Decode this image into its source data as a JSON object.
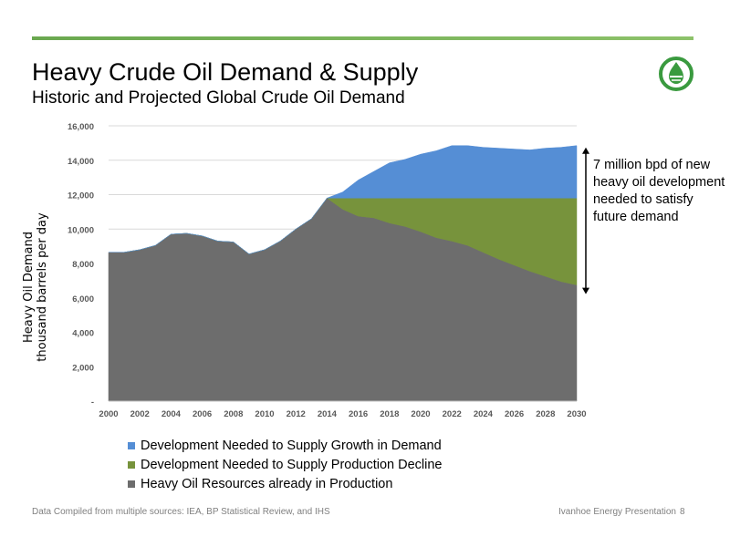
{
  "slide": {
    "title": "Heavy Crude Oil Demand & Supply",
    "subtitle": "Historic and Projected Global Crude Oil Demand",
    "footer_source": "Data Compiled from multiple sources:  IEA,  BP Statistical Review, and IHS",
    "footer_presentation": "Ivanhoe Energy Presentation",
    "page_number": "8",
    "annotation": "7 million bpd of new heavy oil development needed to satisfy future demand",
    "logo_icon": "ivanhoe-drop-logo-icon"
  },
  "colors": {
    "rule": "#6aa84f",
    "logo": "#3a9a3f",
    "growth": "#558ed5",
    "decline": "#77933c",
    "production": "#6d6d6d",
    "axis_text": "#595959",
    "gridline": "#d9d9d9"
  },
  "chart_data": {
    "type": "area",
    "stacked": true,
    "ylabel": [
      "Heavy Oil Demand",
      "thousand barrels per day"
    ],
    "ylim": [
      0,
      16000
    ],
    "y_ticks": [
      0,
      2000,
      4000,
      6000,
      8000,
      10000,
      12000,
      14000,
      16000
    ],
    "y_tick_labels": [
      "-",
      "2,000",
      "4,000",
      "6,000",
      "8,000",
      "10,000",
      "12,000",
      "14,000",
      "16,000"
    ],
    "x_ticks": [
      2000,
      2002,
      2004,
      2006,
      2008,
      2010,
      2012,
      2014,
      2016,
      2018,
      2020,
      2022,
      2024,
      2026,
      2028,
      2030
    ],
    "x_tick_labels": [
      "2000",
      "2002",
      "2004",
      "2006",
      "2008",
      "2010",
      "2012",
      "2014",
      "2016",
      "2018",
      "2020",
      "2022",
      "2024",
      "2026",
      "2028",
      "2030"
    ],
    "grid": "horizontal",
    "legend_position": "bottom",
    "x": [
      2000,
      2001,
      2002,
      2003,
      2004,
      2005,
      2006,
      2007,
      2008,
      2009,
      2010,
      2011,
      2012,
      2013,
      2014,
      2015,
      2016,
      2017,
      2018,
      2019,
      2020,
      2021,
      2022,
      2023,
      2024,
      2025,
      2026,
      2027,
      2028,
      2029,
      2030
    ],
    "series": [
      {
        "name": "Heavy Oil Resources already in Production",
        "color": "#6d6d6d",
        "values": [
          8650,
          8650,
          8800,
          9050,
          9700,
          9750,
          9600,
          9300,
          9250,
          8550,
          8800,
          9300,
          10000,
          10600,
          11800,
          11150,
          10750,
          10650,
          10350,
          10150,
          9850,
          9500,
          9300,
          9050,
          8650,
          8250,
          7900,
          7550,
          7250,
          6950,
          6750
        ]
      },
      {
        "name": "Development Needed to Supply Production Decline",
        "color": "#77933c",
        "values": [
          0,
          0,
          0,
          0,
          0,
          0,
          0,
          0,
          0,
          0,
          0,
          0,
          0,
          0,
          0,
          650,
          1050,
          1150,
          1450,
          1650,
          1950,
          2300,
          2500,
          2750,
          3150,
          3550,
          3900,
          4250,
          4550,
          4850,
          5050
        ]
      },
      {
        "name": "Development Needed to Supply Growth in Demand",
        "color": "#558ed5",
        "values": [
          0,
          0,
          0,
          0,
          0,
          0,
          0,
          0,
          0,
          0,
          0,
          0,
          0,
          0,
          0,
          350,
          1050,
          1550,
          2050,
          2250,
          2550,
          2750,
          3050,
          3050,
          2950,
          2900,
          2850,
          2800,
          2900,
          2950,
          3050
        ]
      }
    ],
    "legend_order": [
      "Development Needed to Supply Growth in Demand",
      "Development Needed to Supply Production Decline",
      "Heavy Oil Resources already in Production"
    ]
  }
}
